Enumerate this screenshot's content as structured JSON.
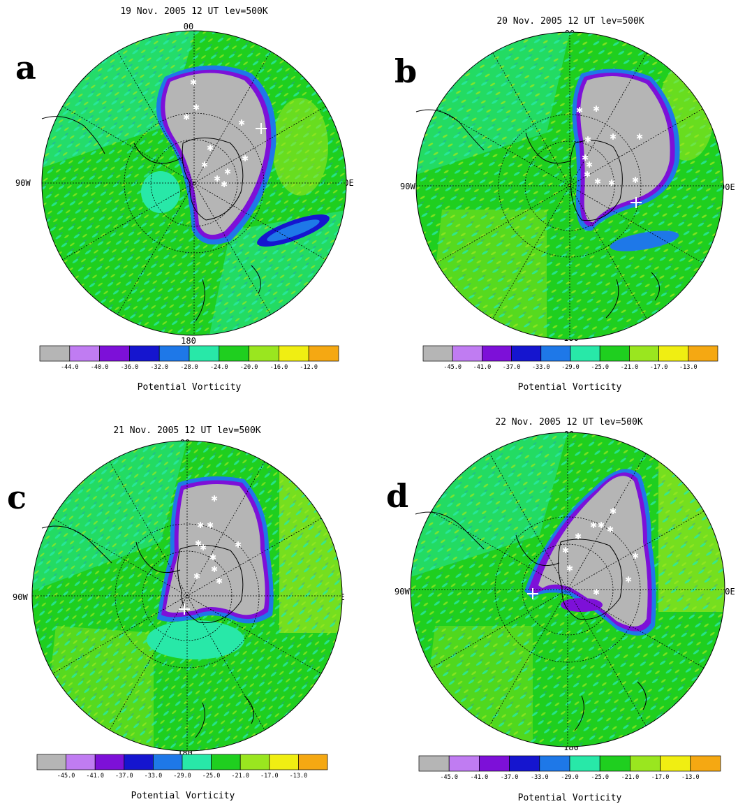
{
  "figure": {
    "colorbar_title": "Potential Vorticity",
    "level_colors": [
      "#b5b5b5",
      "#c07cf2",
      "#7d10d8",
      "#1515cf",
      "#1e78e8",
      "#28e8a8",
      "#1fcf1f",
      "#9ae61f",
      "#f0ee12",
      "#f5a812"
    ],
    "background_color": "#ffffff"
  },
  "panels": [
    {
      "letter": "a",
      "title": "19 Nov. 2005 12 UT lev=500K",
      "lon_labels": {
        "top": "00",
        "left": "90W",
        "right": "90E",
        "bottom": "180"
      },
      "colorbar_ticks": [
        "-44.0",
        "-40.0",
        "-36.0",
        "-32.0",
        "-28.0",
        "-24.0",
        "-20.0",
        "-16.0",
        "-12.0"
      ]
    },
    {
      "letter": "b",
      "title": "20 Nov. 2005 12 UT lev=500K",
      "lon_labels": {
        "top": "00",
        "left": "90W",
        "right": "90E",
        "bottom": "180"
      },
      "colorbar_ticks": [
        "-45.0",
        "-41.0",
        "-37.0",
        "-33.0",
        "-29.0",
        "-25.0",
        "-21.0",
        "-17.0",
        "-13.0"
      ]
    },
    {
      "letter": "c",
      "title": "21 Nov. 2005 12 UT lev=500K",
      "lon_labels": {
        "top": "00",
        "left": "90W",
        "right": "90E",
        "bottom": "180"
      },
      "colorbar_ticks": [
        "-45.0",
        "-41.0",
        "-37.0",
        "-33.0",
        "-29.0",
        "-25.0",
        "-21.0",
        "-17.0",
        "-13.0"
      ]
    },
    {
      "letter": "d",
      "title": "22 Nov. 2005 12 UT lev=500K",
      "lon_labels": {
        "top": "00",
        "left": "90W",
        "right": "90E",
        "bottom": "180"
      },
      "colorbar_ticks": [
        "-45.0",
        "-41.0",
        "-37.0",
        "-33.0",
        "-29.0",
        "-25.0",
        "-21.0",
        "-17.0",
        "-13.0"
      ]
    }
  ]
}
